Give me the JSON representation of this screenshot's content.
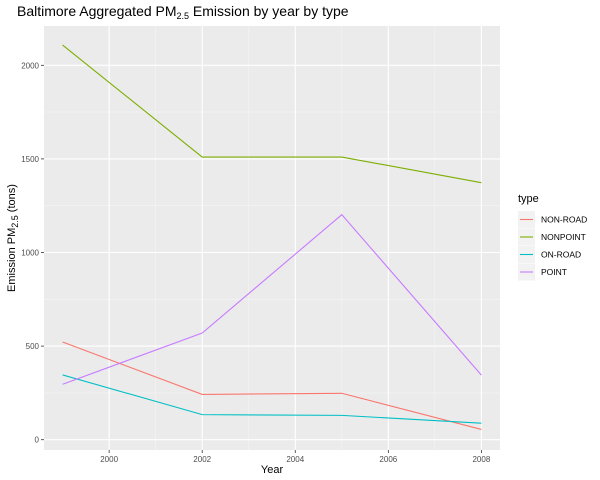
{
  "chart_data": {
    "type": "line",
    "title": {
      "text": "Baltimore Aggregated PM",
      "subscript": "2.5",
      "suffix": " Emission by year by type"
    },
    "xlabel": "Year",
    "ylabel": {
      "text": "Emission PM",
      "subscript": "2.5",
      "suffix": " (tons)"
    },
    "x": [
      1999,
      2002,
      2005,
      2008
    ],
    "xlim": [
      1998.6,
      2008.4
    ],
    "ylim": [
      -55,
      2210
    ],
    "xticks": [
      2000,
      2002,
      2004,
      2006,
      2008
    ],
    "yticks": [
      0,
      500,
      1000,
      1500,
      2000
    ],
    "grid": true,
    "legend": {
      "title": "type",
      "position": "right"
    },
    "series": [
      {
        "name": "NON-ROAD",
        "color": "#F8766D",
        "values": [
          522,
          242,
          248,
          55
        ]
      },
      {
        "name": "NONPOINT",
        "color": "#7CAE00",
        "values": [
          2108,
          1510,
          1510,
          1373
        ]
      },
      {
        "name": "ON-ROAD",
        "color": "#00BFC4",
        "values": [
          346,
          134,
          130,
          88
        ]
      },
      {
        "name": "POINT",
        "color": "#C77CFF",
        "values": [
          296,
          570,
          1202,
          345
        ]
      }
    ]
  }
}
